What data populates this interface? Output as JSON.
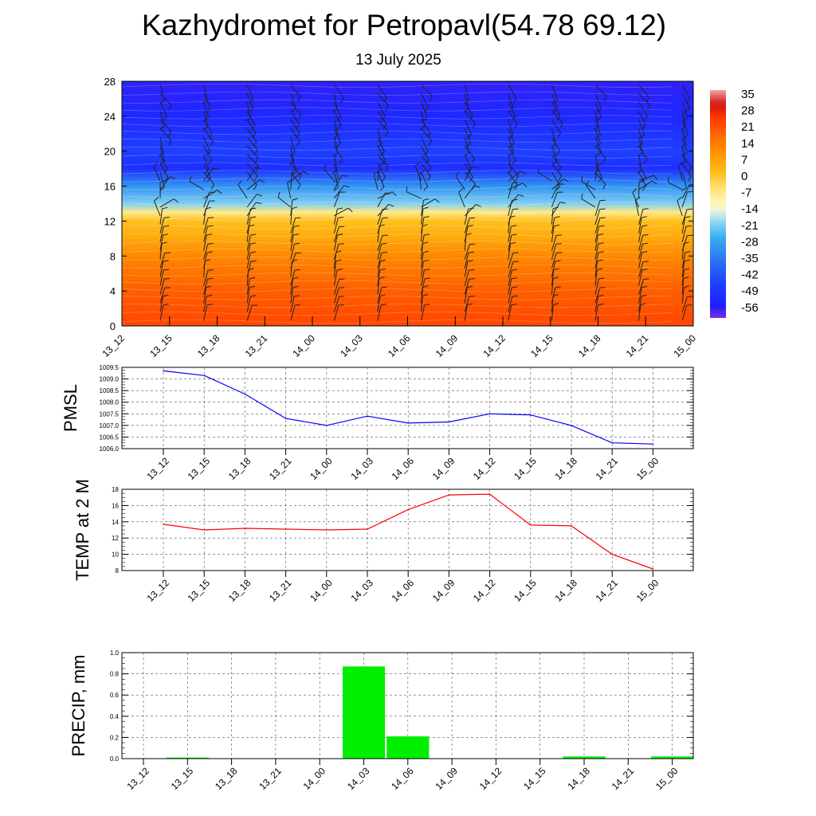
{
  "title": "Kazhydromet for Petropavl(54.78 69.12)",
  "subtitle": "13 July 2025",
  "time_labels": [
    "13_12",
    "13_15",
    "13_18",
    "13_21",
    "14_00",
    "14_03",
    "14_06",
    "14_09",
    "14_12",
    "14_15",
    "14_18",
    "14_21",
    "15_00"
  ],
  "colors": {
    "pmsl_line": "#0000ff",
    "temp_line": "#ff0000",
    "precip_bar": "#00ee00"
  },
  "chart_data": [
    {
      "type": "heatmap",
      "name": "vertical-section",
      "x_labels": [
        "13_12",
        "13_15",
        "13_18",
        "13_21",
        "14_00",
        "14_03",
        "14_06",
        "14_09",
        "14_12",
        "14_15",
        "14_18",
        "14_21",
        "15_00"
      ],
      "y_ticks": [
        0,
        4,
        8,
        12,
        16,
        20,
        24,
        28
      ],
      "ylim": [
        0,
        28
      ],
      "colorbar_labels": [
        "35",
        "28",
        "21",
        "14",
        "7",
        "0",
        "-7",
        "-14",
        "-21",
        "-28",
        "-35",
        "-42",
        "-49",
        "-56"
      ],
      "colorbar_range": [
        -60,
        38
      ],
      "level_temperatures": [
        {
          "y": 0,
          "t": 24
        },
        {
          "y": 4,
          "t": 20
        },
        {
          "y": 8,
          "t": 13
        },
        {
          "y": 10,
          "t": 7
        },
        {
          "y": 12,
          "t": 2
        },
        {
          "y": 13,
          "t": -6
        },
        {
          "y": 14,
          "t": -20
        },
        {
          "y": 16,
          "t": -30
        },
        {
          "y": 18,
          "t": -50
        },
        {
          "y": 20,
          "t": -45
        },
        {
          "y": 24,
          "t": -52
        },
        {
          "y": 28,
          "t": -56
        }
      ],
      "wind_barbs": true
    },
    {
      "type": "line",
      "ylabel": "PMSL",
      "categories": [
        "13_12",
        "13_15",
        "13_18",
        "13_21",
        "14_00",
        "14_03",
        "14_06",
        "14_09",
        "14_12",
        "14_15",
        "14_18",
        "14_21",
        "15_00"
      ],
      "values": [
        1009.35,
        1009.15,
        1008.35,
        1007.3,
        1007.0,
        1007.4,
        1007.1,
        1007.15,
        1007.5,
        1007.45,
        1007.0,
        1006.25,
        1006.2
      ],
      "ylim": [
        1006.0,
        1009.5
      ],
      "y_ticks": [
        "1006.0",
        "1006.5",
        "1007.0",
        "1007.5",
        "1008.0",
        "1008.5",
        "1009.0",
        "1009.5"
      ],
      "grid": true
    },
    {
      "type": "line",
      "ylabel": "TEMP at 2 M",
      "categories": [
        "13_12",
        "13_15",
        "13_18",
        "13_21",
        "14_00",
        "14_03",
        "14_06",
        "14_09",
        "14_12",
        "14_15",
        "14_18",
        "14_21",
        "15_00"
      ],
      "values": [
        13.7,
        13.0,
        13.2,
        13.1,
        13.0,
        13.1,
        15.5,
        17.3,
        17.4,
        13.6,
        13.5,
        10.0,
        8.2
      ],
      "ylim": [
        8,
        18
      ],
      "y_ticks": [
        "8",
        "10",
        "12",
        "14",
        "16",
        "18"
      ],
      "grid": true
    },
    {
      "type": "bar",
      "ylabel": "PRECIP, mm",
      "categories": [
        "13_12",
        "13_15",
        "13_18",
        "13_21",
        "14_00",
        "14_03",
        "14_06",
        "14_09",
        "14_12",
        "14_15",
        "14_18",
        "14_21",
        "15_00"
      ],
      "values": [
        0,
        0.01,
        0,
        0,
        0,
        0.87,
        0.21,
        0,
        0,
        0,
        0.02,
        0,
        0.02
      ],
      "ylim": [
        0,
        1.0
      ],
      "y_ticks": [
        "0.0",
        "0.2",
        "0.4",
        "0.6",
        "0.8",
        "1.0"
      ],
      "grid": true
    }
  ]
}
